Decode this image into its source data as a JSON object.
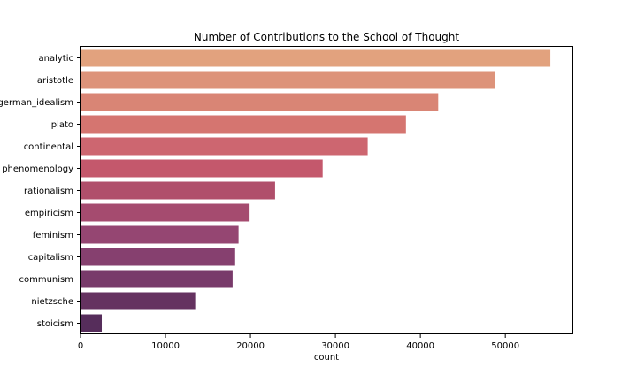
{
  "chart_data": {
    "type": "bar",
    "orientation": "horizontal",
    "title": "Number of Contributions to the School of Thought",
    "xlabel": "count",
    "ylabel": "",
    "xlim": [
      0,
      58000
    ],
    "xticks": [
      0,
      10000,
      20000,
      30000,
      40000,
      50000
    ],
    "categories": [
      "analytic",
      "aristotle",
      "german_idealism",
      "plato",
      "continental",
      "phenomenology",
      "rationalism",
      "empiricism",
      "feminism",
      "capitalism",
      "communism",
      "nietzsche",
      "stoicism"
    ],
    "values": [
      55300,
      48800,
      42100,
      38300,
      33800,
      28500,
      22900,
      19900,
      18600,
      18200,
      17900,
      13500,
      2500
    ],
    "colors": [
      "#e2a27e",
      "#dd937a",
      "#d98575",
      "#d57570",
      "#cd6670",
      "#c4586c",
      "#b04f6b",
      "#a54b6f",
      "#954672",
      "#86406f",
      "#783a6a",
      "#653260",
      "#562d5b"
    ],
    "grid": false,
    "legend": "none"
  }
}
